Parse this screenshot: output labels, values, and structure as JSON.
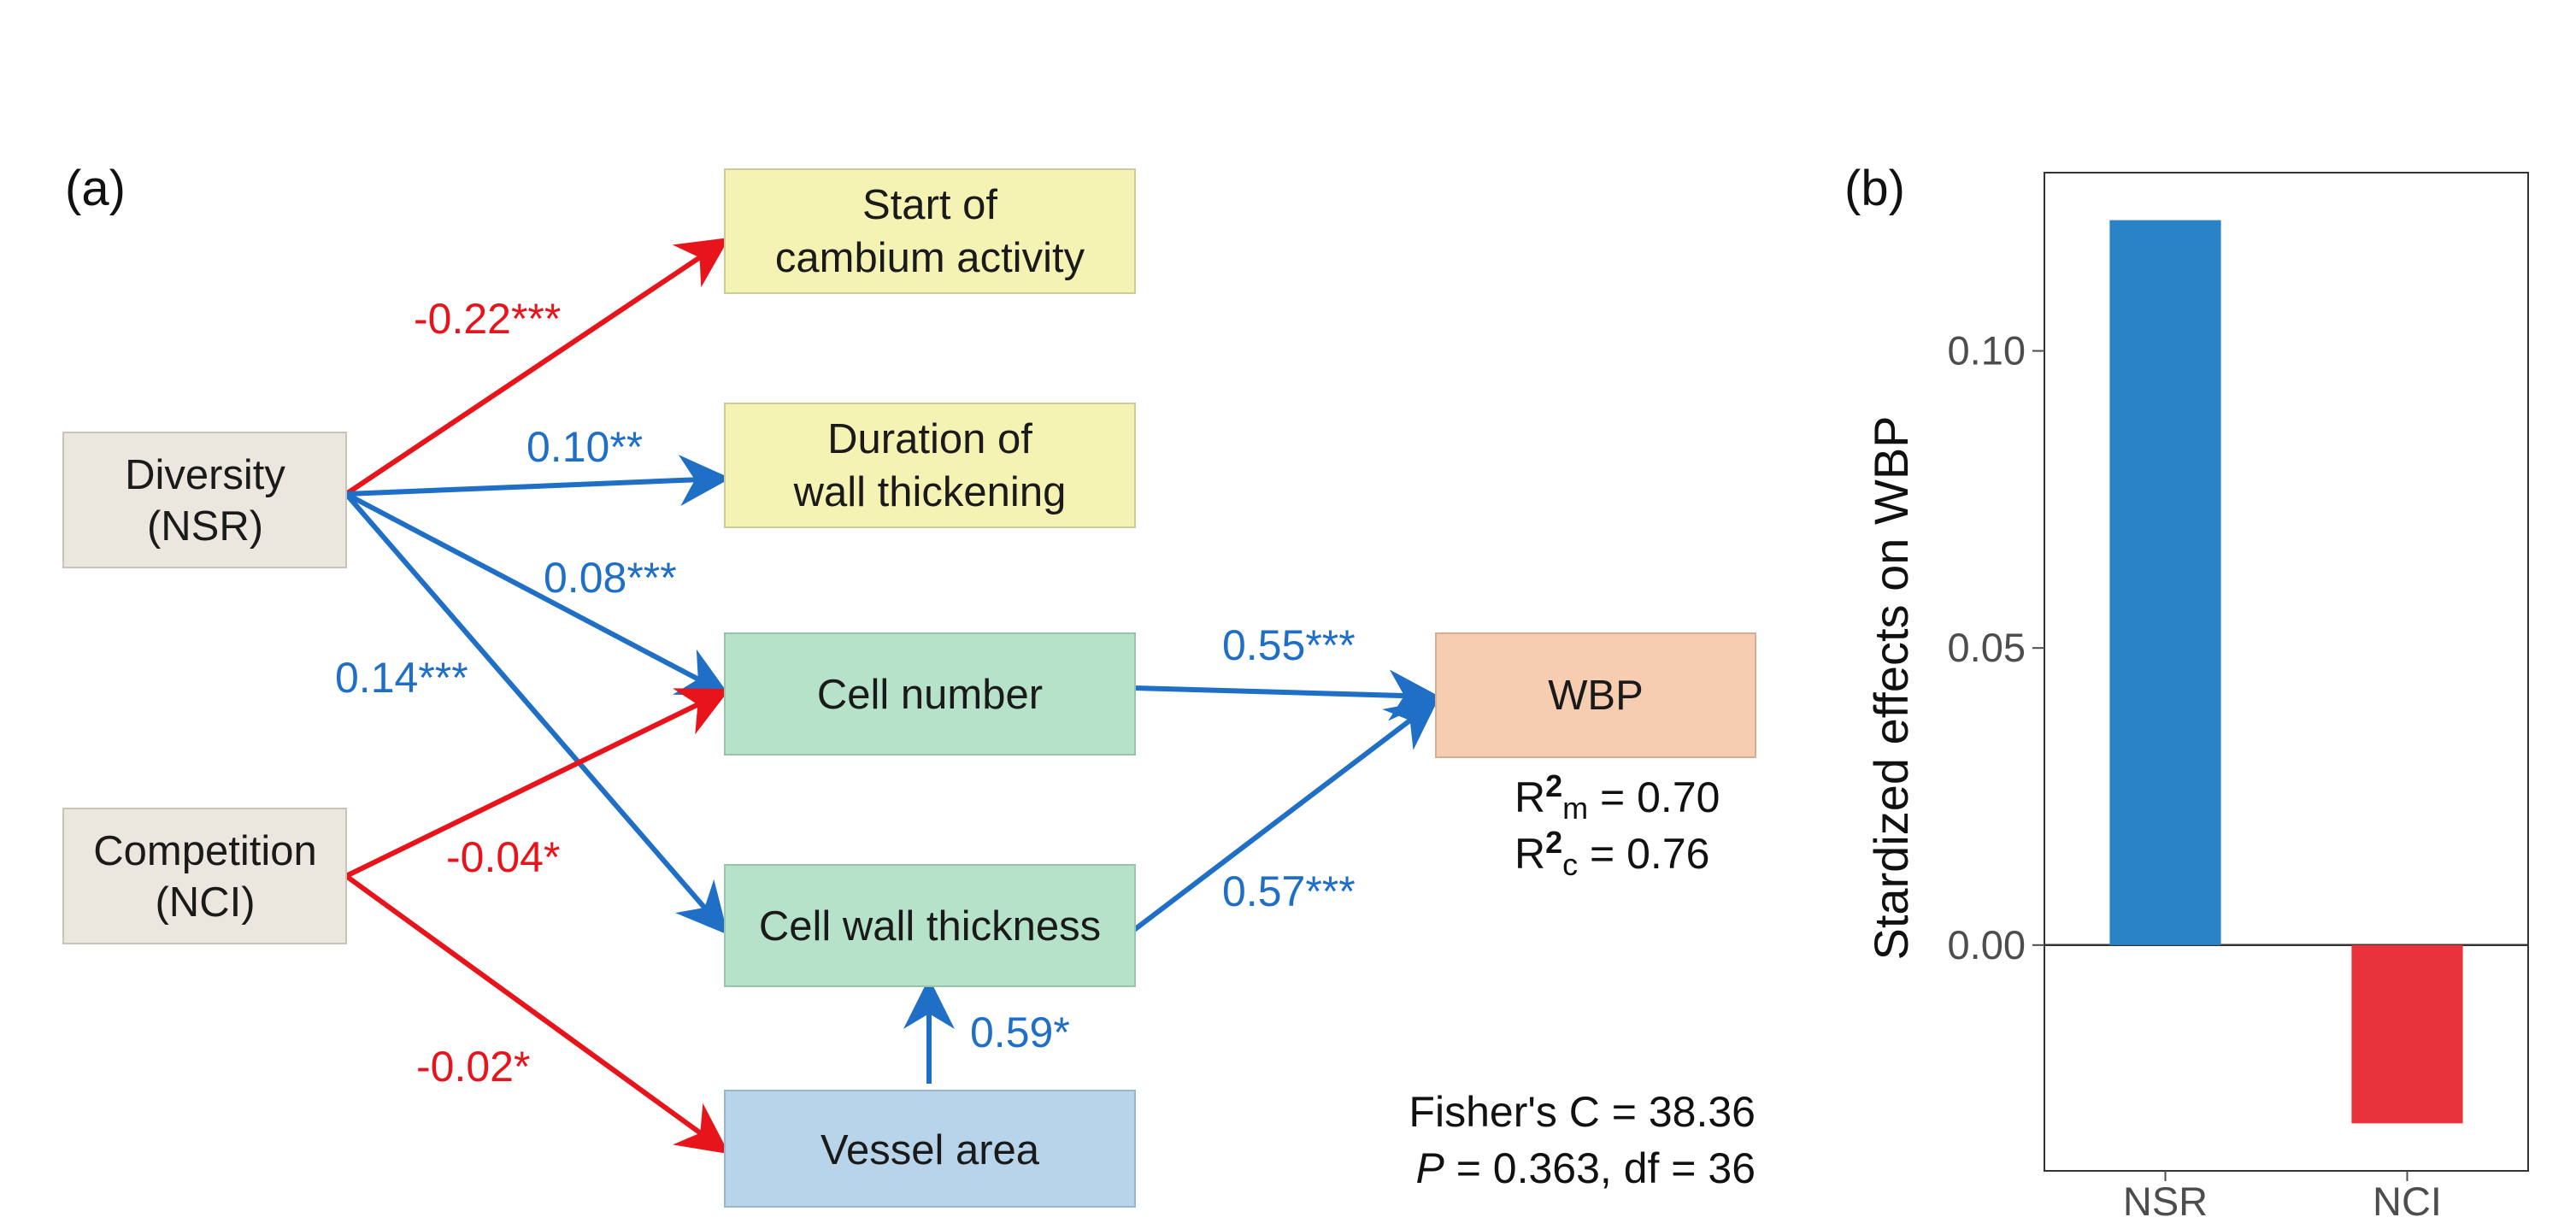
{
  "panel_a": {
    "label": "(a)",
    "nodes": {
      "diversity": {
        "line1": "Diversity",
        "line2": "(NSR)",
        "fill": "#ebe7de"
      },
      "competition": {
        "line1": "Competition",
        "line2": "(NCI)",
        "fill": "#ebe7de"
      },
      "start_cambium": {
        "line1": "Start of",
        "line2": "cambium activity",
        "fill": "#f5f3b3"
      },
      "duration_wall": {
        "line1": "Duration of",
        "line2": "wall thickening",
        "fill": "#f5f3b3"
      },
      "cell_number": {
        "label": "Cell number",
        "fill": "#b5e2c9"
      },
      "cell_wall": {
        "label": "Cell wall thickness",
        "fill": "#b5e2c9"
      },
      "vessel_area": {
        "label": "Vessel area",
        "fill": "#b8d4ea"
      },
      "wbp": {
        "label": "WBP",
        "fill": "#f7cdb2"
      }
    },
    "paths": [
      {
        "from": "Diversity (NSR)",
        "to": "Start of cambium activity",
        "coef": "-0.22***",
        "sign": "negative"
      },
      {
        "from": "Diversity (NSR)",
        "to": "Duration of wall thickening",
        "coef": "0.10**",
        "sign": "positive"
      },
      {
        "from": "Diversity (NSR)",
        "to": "Cell number",
        "coef": "0.08***",
        "sign": "positive"
      },
      {
        "from": "Diversity (NSR)",
        "to": "Cell wall thickness",
        "coef": "0.14***",
        "sign": "positive"
      },
      {
        "from": "Competition (NCI)",
        "to": "Cell number",
        "coef": "-0.04*",
        "sign": "negative"
      },
      {
        "from": "Competition (NCI)",
        "to": "Vessel area",
        "coef": "-0.02*",
        "sign": "negative"
      },
      {
        "from": "Cell number",
        "to": "WBP",
        "coef": "0.55***",
        "sign": "positive"
      },
      {
        "from": "Cell wall thickness",
        "to": "WBP",
        "coef": "0.57***",
        "sign": "positive"
      },
      {
        "from": "Vessel area",
        "to": "Cell wall thickness",
        "coef": "0.59*",
        "sign": "positive"
      }
    ],
    "r2": {
      "marginal": {
        "base": "R",
        "sup": "2",
        "sub": "m",
        "value": " = 0.70"
      },
      "conditional": {
        "base": "R",
        "sup": "2",
        "sub": "c",
        "value": " = 0.76"
      }
    },
    "fit": {
      "fisher": "Fisher's C = 38.36",
      "p_symbol": "P",
      "p_rest": " = 0.363, df = 36"
    },
    "colors": {
      "positive": "#1f6fc6",
      "negative": "#e8141c"
    }
  },
  "panel_b": {
    "label": "(b)",
    "chart_data": {
      "type": "bar",
      "categories": [
        "NSR",
        "NCI"
      ],
      "values": [
        0.122,
        -0.03
      ],
      "colors": [
        "#2a82c7",
        "#e8333c"
      ],
      "ylabel": "Stardized effects on WBP",
      "xlabel": "",
      "ylim": [
        -0.038,
        0.13
      ],
      "yticks": [
        0.0,
        0.05,
        0.1
      ],
      "ytick_labels": [
        "0.00",
        "0.05",
        "0.10"
      ],
      "zero_line": true,
      "grid": false
    }
  }
}
